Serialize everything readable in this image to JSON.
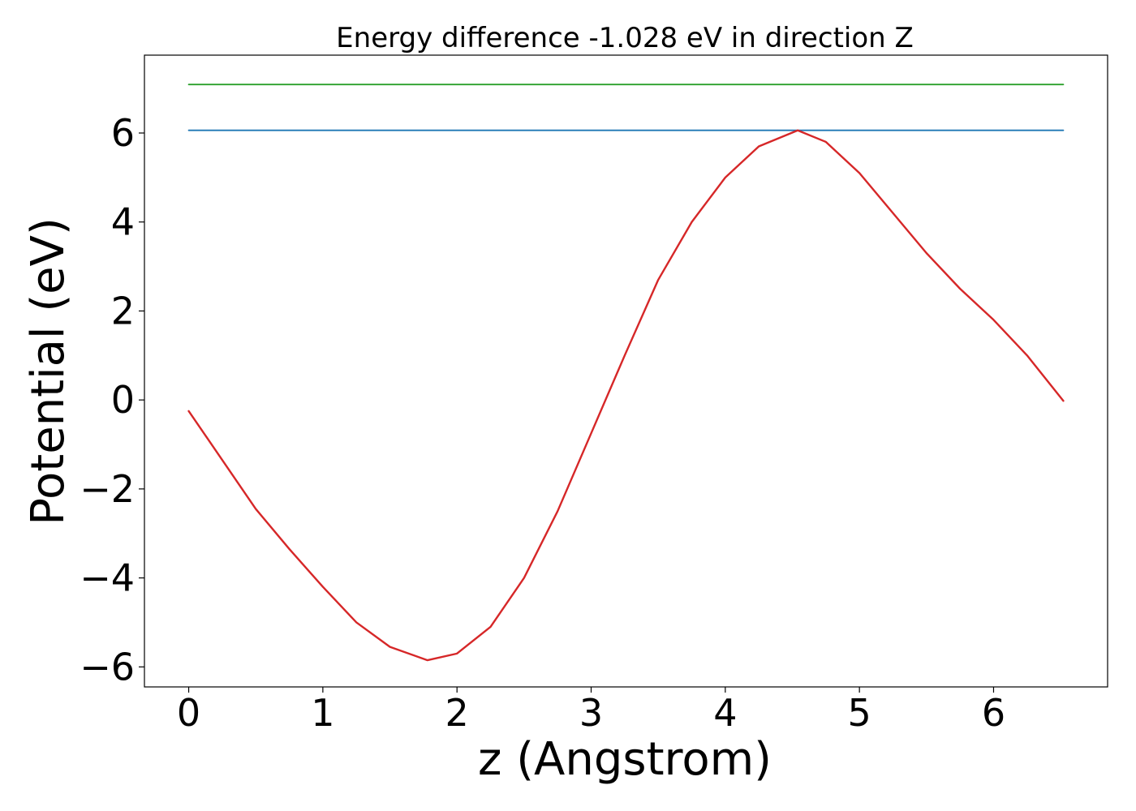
{
  "chart_data": {
    "type": "line",
    "title": "Energy difference -1.028 eV in direction Z",
    "xlabel": "z (Angstrom)",
    "ylabel": "Potential (eV)",
    "xlim": [
      -0.33,
      6.85
    ],
    "ylim": [
      -6.45,
      7.75
    ],
    "x_ticks": [
      0,
      1,
      2,
      3,
      4,
      5,
      6
    ],
    "x_tick_labels": [
      "0",
      "1",
      "2",
      "3",
      "4",
      "5",
      "6"
    ],
    "y_ticks": [
      -6,
      -4,
      -2,
      0,
      2,
      4,
      6
    ],
    "y_tick_labels": [
      "−6",
      "−4",
      "−2",
      "0",
      "2",
      "4",
      "6"
    ],
    "grid": false,
    "series": [
      {
        "color": "#2ca02c",
        "x": [
          0,
          6.52
        ],
        "y": [
          7.09,
          7.09
        ]
      },
      {
        "color": "#1f77b4",
        "x": [
          0,
          6.52
        ],
        "y": [
          6.06,
          6.06
        ]
      },
      {
        "color": "#d62728",
        "x": [
          0,
          0.25,
          0.5,
          0.75,
          1.0,
          1.25,
          1.5,
          1.78,
          2.0,
          2.25,
          2.5,
          2.75,
          3.0,
          3.25,
          3.5,
          3.75,
          4.0,
          4.25,
          4.54,
          4.75,
          5.0,
          5.25,
          5.5,
          5.75,
          6.0,
          6.25,
          6.52
        ],
        "y": [
          -0.25,
          -1.35,
          -2.45,
          -3.35,
          -4.2,
          -5.0,
          -5.55,
          -5.85,
          -5.7,
          -5.1,
          -4.0,
          -2.5,
          -0.75,
          1.0,
          2.7,
          4.0,
          5.0,
          5.7,
          6.06,
          5.8,
          5.1,
          4.2,
          3.3,
          2.5,
          1.8,
          1.0,
          -0.02
        ]
      }
    ]
  }
}
